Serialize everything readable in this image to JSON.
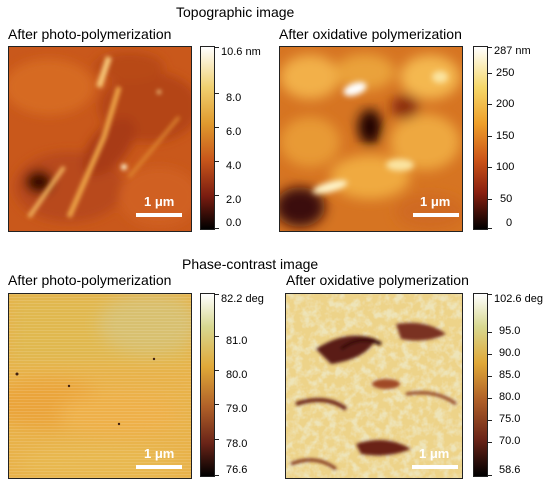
{
  "sections": {
    "topographic_title": "Topographic image",
    "phase_title": "Phase-contrast image"
  },
  "panels": [
    {
      "title": "After photo-polymerization",
      "scale_label": "1 μm",
      "colorbar": {
        "labels": [
          "10.6 nm",
          "8.0",
          "6.0",
          "4.0",
          "2.0",
          "0.0"
        ],
        "colors": [
          "#ffffff",
          "#f0d070",
          "#e09a2e",
          "#c8561a",
          "#7a1c10",
          "#000000"
        ]
      }
    },
    {
      "title": "After oxidative polymerization",
      "scale_label": "1 μm",
      "colorbar": {
        "labels": [
          "287 nm",
          "250",
          "200",
          "150",
          "100",
          "50",
          "0"
        ],
        "colors": [
          "#ffffff",
          "#f6d86a",
          "#ee9f2a",
          "#cc5418",
          "#8a2010",
          "#000000"
        ]
      }
    },
    {
      "title": "After photo-polymerization",
      "scale_label": "1 μm",
      "colorbar": {
        "labels": [
          "82.2 deg",
          "81.0",
          "80.0",
          "79.0",
          "78.0",
          "76.6"
        ],
        "colors": [
          "#ffffff",
          "#d8d890",
          "#e0a838",
          "#b06028",
          "#6a2418",
          "#000000"
        ]
      }
    },
    {
      "title": "After oxidative polymerization",
      "scale_label": "1 μm",
      "colorbar": {
        "labels": [
          "102.6 deg",
          "95.0",
          "90.0",
          "85.0",
          "80.0",
          "75.0",
          "70.0",
          "58.6"
        ],
        "colors": [
          "#ffffff",
          "#d8d890",
          "#e0a838",
          "#b06028",
          "#6a2418",
          "#000000"
        ]
      }
    }
  ]
}
